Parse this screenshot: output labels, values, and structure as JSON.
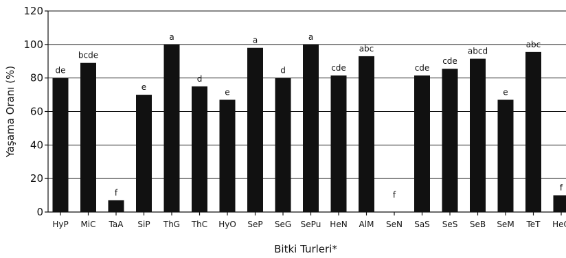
{
  "chart_data": {
    "type": "bar",
    "xlabel": "Bitki Turleri*",
    "ylabel": "Yaşama Oranı (%)",
    "ylim": [
      0,
      120
    ],
    "yticks": [
      0,
      20,
      40,
      60,
      80,
      100,
      120
    ],
    "grid": true,
    "bar_color": "#111111",
    "categories": [
      "HyP",
      "MiC",
      "TaA",
      "SiP",
      "ThG",
      "ThC",
      "HyO",
      "SeP",
      "SeG",
      "SePu",
      "HeN",
      "AlM",
      "SeN",
      "SaS",
      "SeS",
      "SeB",
      "SeM",
      "TeT",
      "HeO"
    ],
    "values": [
      80,
      89,
      7,
      70,
      100,
      75,
      67,
      98,
      80,
      100,
      81.5,
      93,
      0,
      81.5,
      85.5,
      91.5,
      67,
      95.5,
      10
    ],
    "letters": [
      "de",
      "bcde",
      "f",
      "e",
      "a",
      "d",
      "e",
      "a",
      "d",
      "a",
      "cde",
      "abc",
      "f",
      "cde",
      "cde",
      "abcd",
      "e",
      "abc",
      "f"
    ]
  }
}
